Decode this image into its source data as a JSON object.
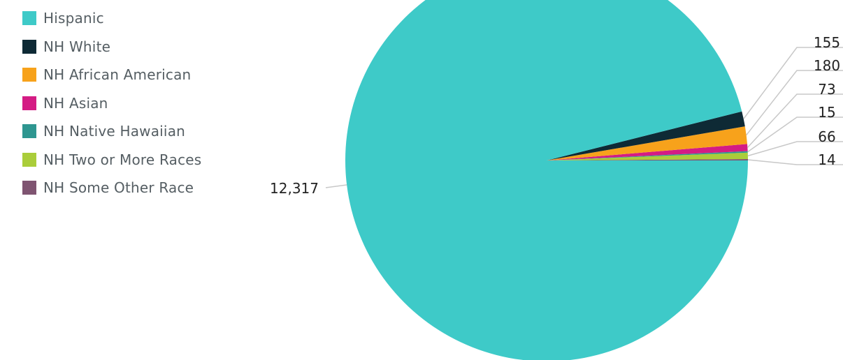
{
  "chart_data": {
    "type": "pie",
    "title": "",
    "legend_position": "top-left",
    "series": [
      {
        "name": "Hispanic",
        "value": 12317,
        "label": "12,317",
        "color": "#3ECAC8"
      },
      {
        "name": "NH White",
        "value": 155,
        "label": "155",
        "color": "#0E2A35"
      },
      {
        "name": "NH African American",
        "value": 180,
        "label": "180",
        "color": "#F7A21B"
      },
      {
        "name": "NH Asian",
        "value": 73,
        "label": "73",
        "color": "#D41C84"
      },
      {
        "name": "NH Native Hawaiian",
        "value": 15,
        "label": "15",
        "color": "#2E9690"
      },
      {
        "name": "NH Two or More Races",
        "value": 66,
        "label": "66",
        "color": "#AACD3A"
      },
      {
        "name": "NH Some Other Race",
        "value": 14,
        "label": "14",
        "color": "#7F5471"
      }
    ]
  }
}
